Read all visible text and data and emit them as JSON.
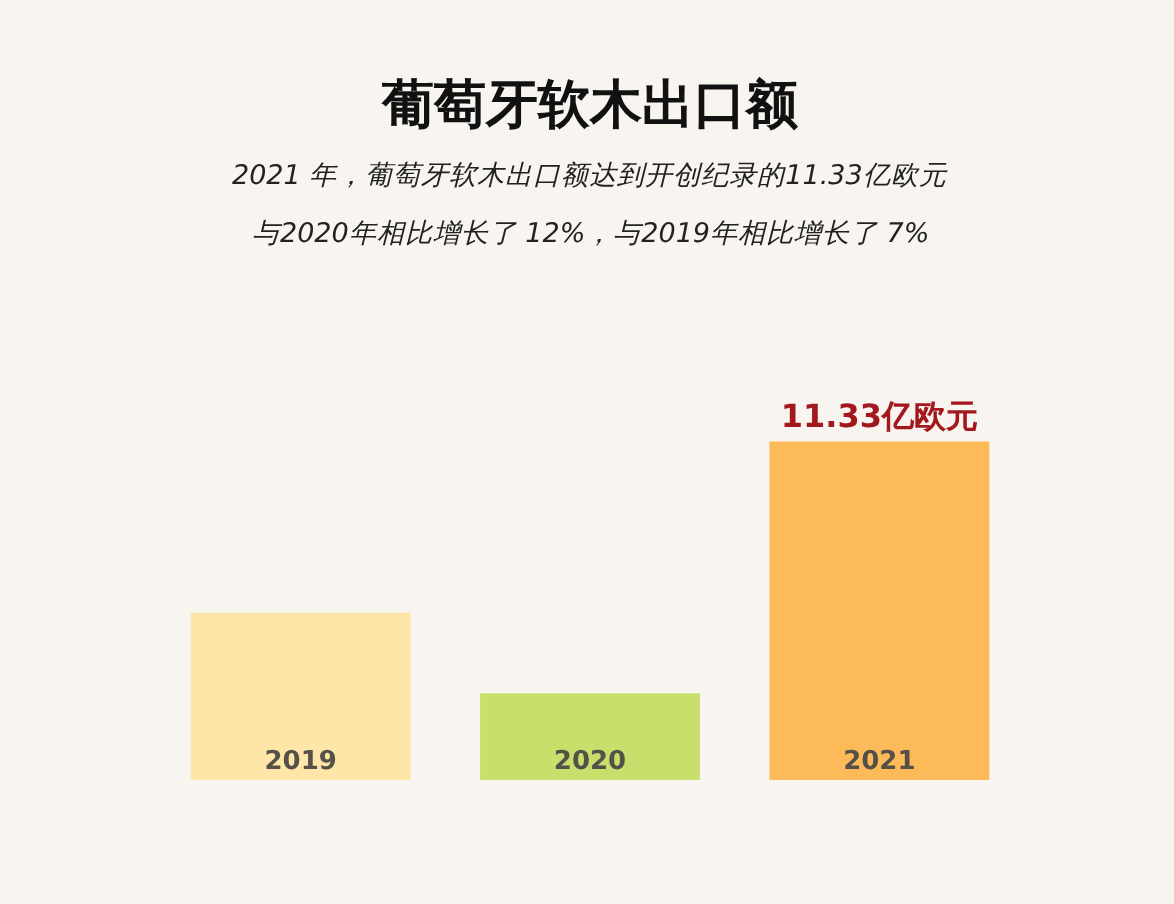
{
  "chart_data": {
    "type": "bar",
    "title": "葡萄牙软木出口额",
    "subtitle": "2021 年，葡萄牙软木出口额达到开创纪录的11.33亿欧元",
    "annotations": [
      "与2020年相比增长了 12%，与2019年相比增长了 7%"
    ],
    "categories": [
      "2019",
      "2020",
      "2021"
    ],
    "values": [
      5.6,
      2.9,
      11.33
    ],
    "colors": [
      "#fee6a8",
      "#c8e06b",
      "#fdba58"
    ],
    "value_labels": [
      null,
      null,
      "11.33亿欧元"
    ]
  }
}
